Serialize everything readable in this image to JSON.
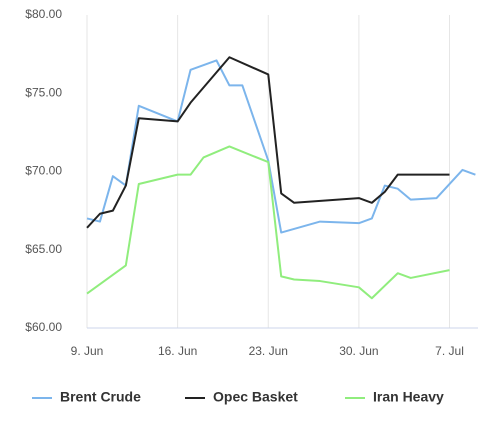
{
  "chart_data": {
    "type": "line",
    "series": [
      {
        "name": "Brent Crude",
        "color": "#7cb5ec",
        "x": [
          9,
          10,
          11,
          12,
          13,
          16,
          17,
          19,
          20,
          21,
          23,
          24,
          27,
          30,
          31,
          32,
          33,
          34,
          36,
          38,
          39
        ],
        "values": [
          67.0,
          66.8,
          69.7,
          69.1,
          74.2,
          73.2,
          76.5,
          77.1,
          75.5,
          75.5,
          70.7,
          66.1,
          66.8,
          66.7,
          67.0,
          69.1,
          68.9,
          68.2,
          68.3,
          70.1,
          69.8
        ]
      },
      {
        "name": "Opec Basket",
        "color": "#222222",
        "x": [
          9,
          10,
          11,
          12,
          13,
          16,
          17,
          20,
          23,
          24,
          25,
          30,
          31,
          32,
          33,
          37
        ],
        "values": [
          66.4,
          67.3,
          67.5,
          69.1,
          73.4,
          73.2,
          74.4,
          77.3,
          76.2,
          68.6,
          68.0,
          68.3,
          68.0,
          68.7,
          69.8,
          69.8
        ]
      },
      {
        "name": "Iran Heavy",
        "color": "#90ed7d",
        "x": [
          9,
          12,
          13,
          16,
          17,
          18,
          20,
          23,
          24,
          25,
          27,
          30,
          31,
          33,
          34,
          37
        ],
        "values": [
          62.2,
          64.0,
          69.2,
          69.8,
          69.8,
          70.9,
          71.6,
          70.6,
          63.3,
          63.1,
          63.0,
          62.6,
          61.9,
          63.5,
          63.2,
          63.7
        ]
      }
    ],
    "xlim": [
      9,
      39.2
    ],
    "xticks": [
      {
        "value": 9,
        "label": "9. Jun"
      },
      {
        "value": 16,
        "label": "16. Jun"
      },
      {
        "value": 23,
        "label": "23. Jun"
      },
      {
        "value": 30,
        "label": "30. Jun"
      },
      {
        "value": 37,
        "label": "7. Jul"
      }
    ],
    "ylim": [
      60,
      80
    ],
    "yticks": [
      {
        "value": 60,
        "label": "$60.00"
      },
      {
        "value": 65,
        "label": "$65.00"
      },
      {
        "value": 70,
        "label": "$70.00"
      },
      {
        "value": 75,
        "label": "$75.00"
      },
      {
        "value": 80,
        "label": "$80.00"
      }
    ],
    "grid": "x",
    "legend": "bottom"
  }
}
